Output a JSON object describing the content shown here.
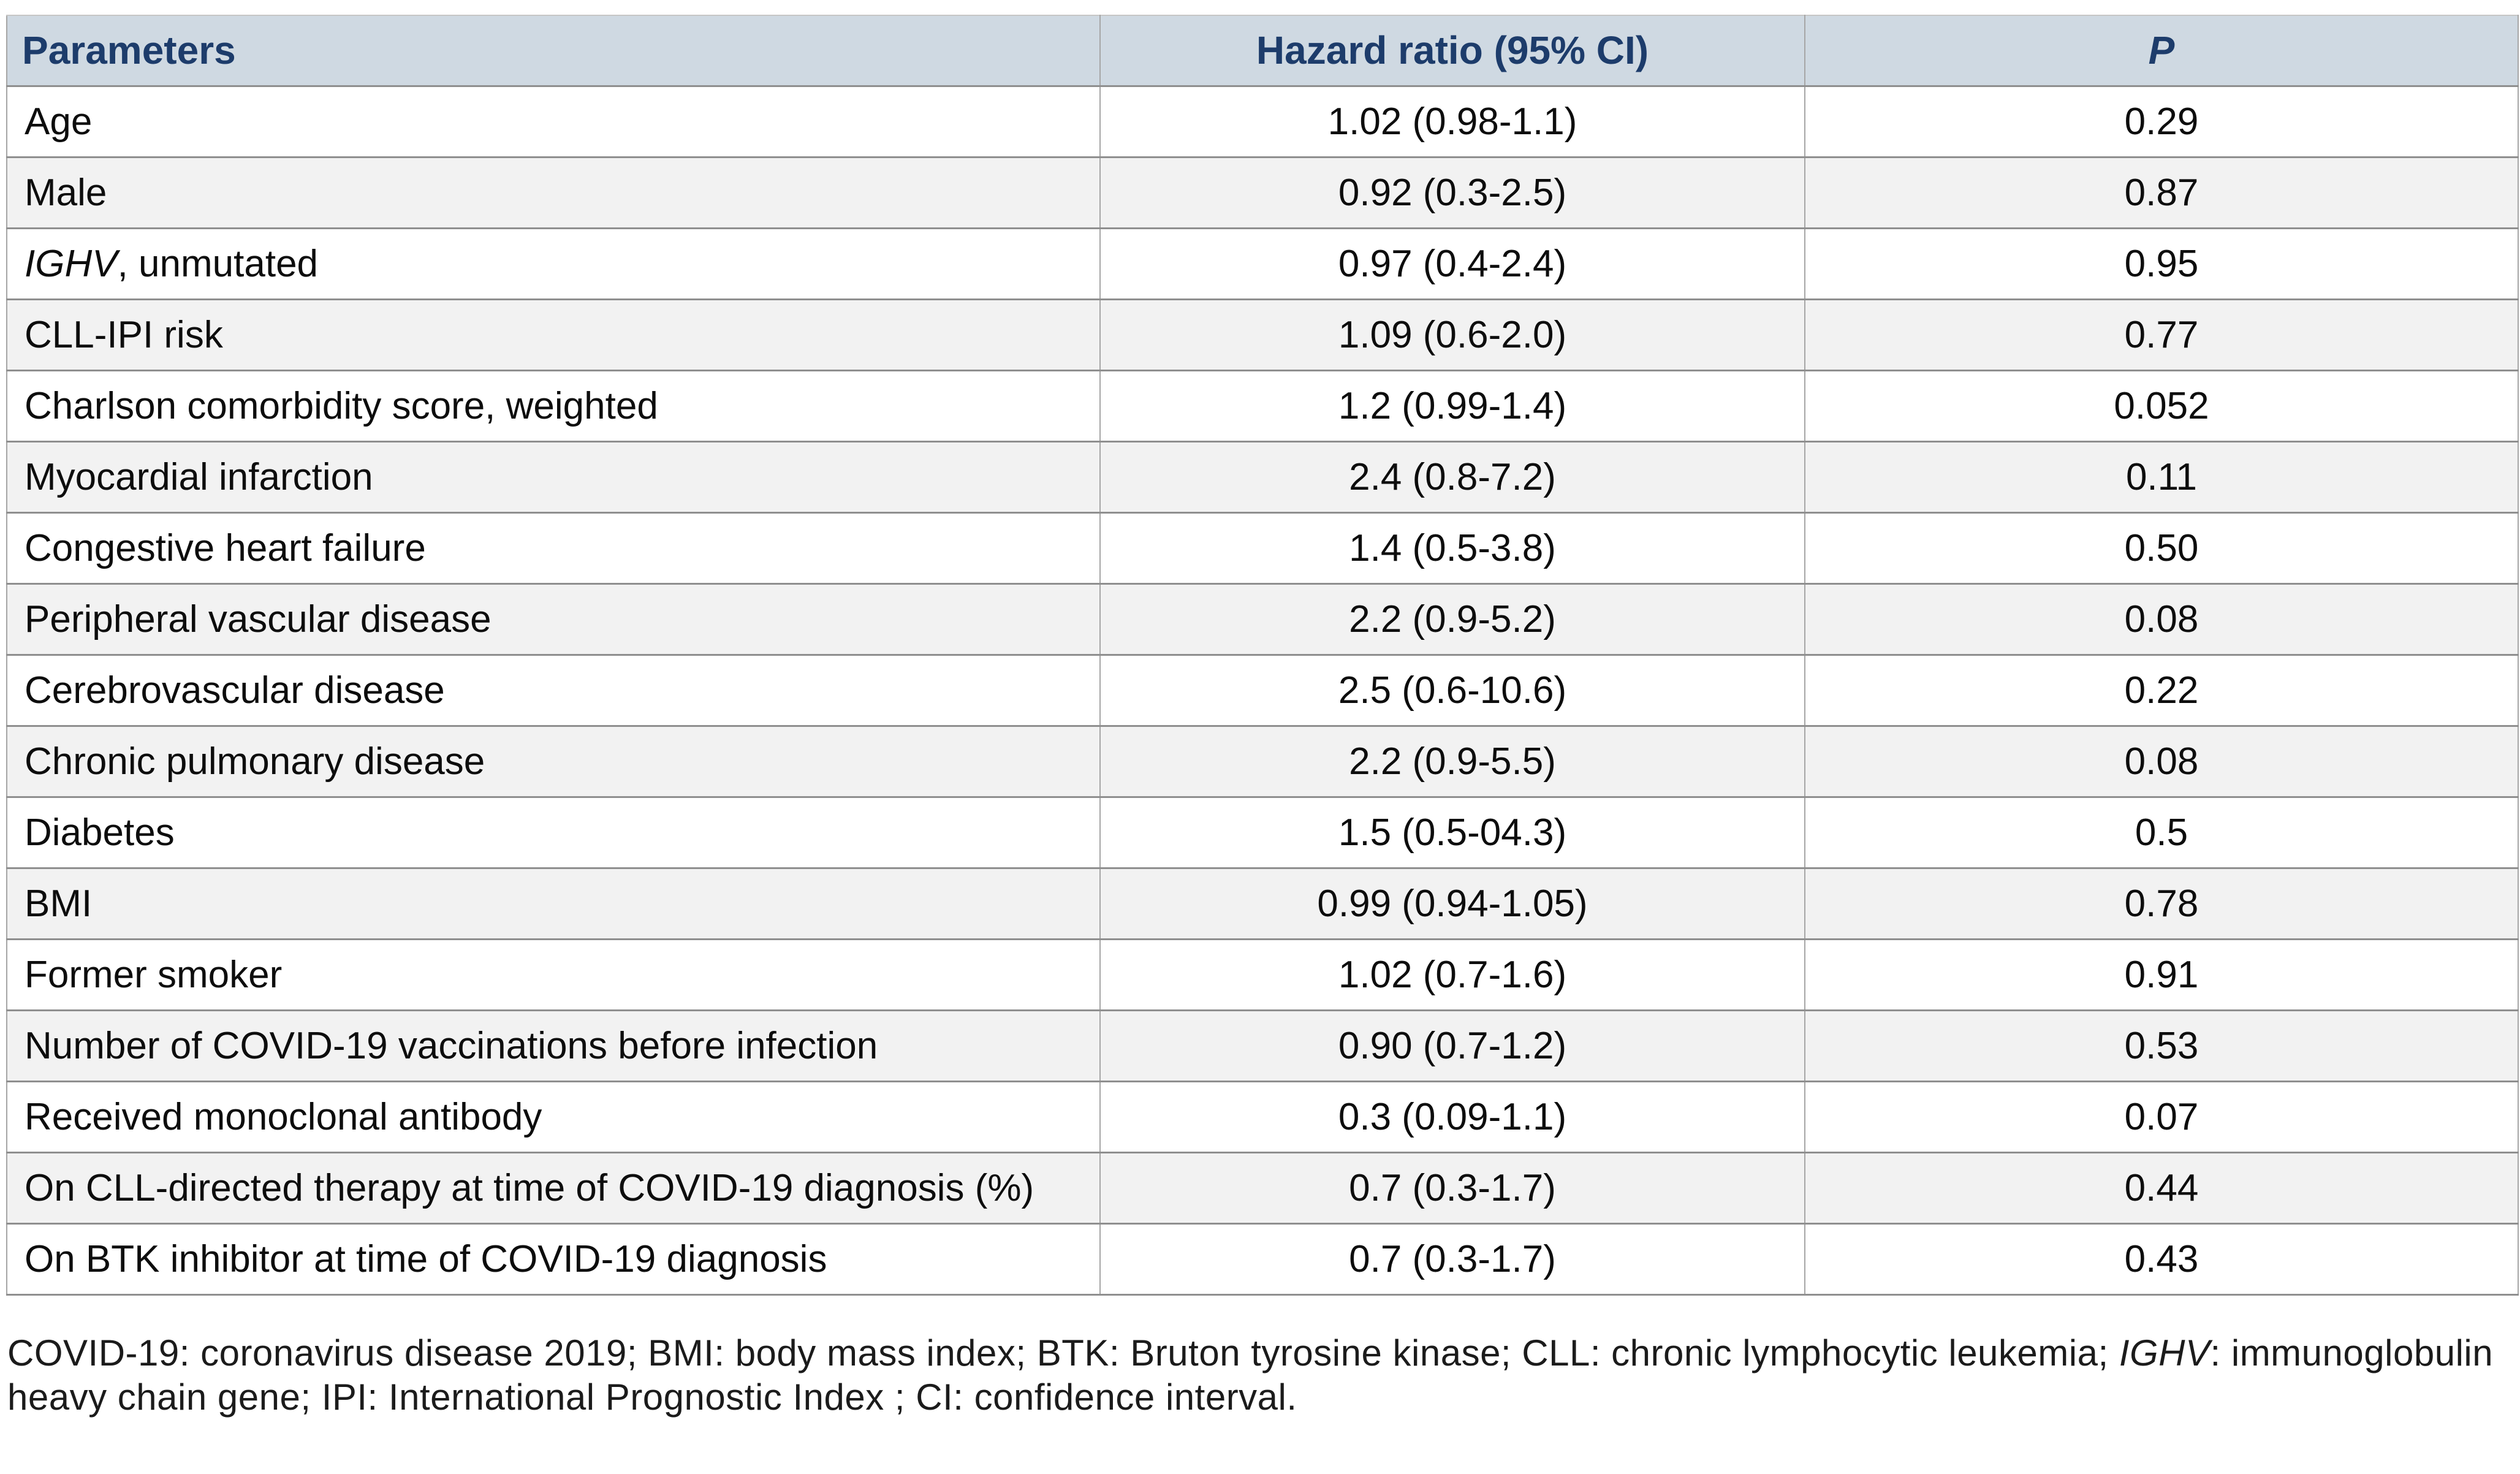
{
  "table": {
    "headers": [
      "Parameters",
      "Hazard ratio (95% CI)",
      "P"
    ],
    "rows": [
      {
        "param_italic": "",
        "param_text": "Age",
        "hazard_ratio": "1.02 (0.98-1.1)",
        "p_value": "0.29"
      },
      {
        "param_italic": "",
        "param_text": "Male",
        "hazard_ratio": "0.92 (0.3-2.5)",
        "p_value": "0.87"
      },
      {
        "param_italic": "IGHV",
        "param_text": ", unmutated",
        "hazard_ratio": "0.97 (0.4-2.4)",
        "p_value": "0.95"
      },
      {
        "param_italic": "",
        "param_text": "CLL-IPI risk",
        "hazard_ratio": "1.09 (0.6-2.0)",
        "p_value": "0.77"
      },
      {
        "param_italic": "",
        "param_text": "Charlson comorbidity score, weighted",
        "hazard_ratio": "1.2 (0.99-1.4)",
        "p_value": "0.052"
      },
      {
        "param_italic": "",
        "param_text": "Myocardial infarction",
        "hazard_ratio": "2.4 (0.8-7.2)",
        "p_value": "0.11"
      },
      {
        "param_italic": "",
        "param_text": "Congestive heart failure",
        "hazard_ratio": "1.4 (0.5-3.8)",
        "p_value": "0.50"
      },
      {
        "param_italic": "",
        "param_text": "Peripheral vascular disease",
        "hazard_ratio": "2.2 (0.9-5.2)",
        "p_value": "0.08"
      },
      {
        "param_italic": "",
        "param_text": "Cerebrovascular disease",
        "hazard_ratio": "2.5 (0.6-10.6)",
        "p_value": "0.22"
      },
      {
        "param_italic": "",
        "param_text": "Chronic pulmonary disease",
        "hazard_ratio": "2.2 (0.9-5.5)",
        "p_value": "0.08"
      },
      {
        "param_italic": "",
        "param_text": "Diabetes",
        "hazard_ratio": "1.5 (0.5-04.3)",
        "p_value": "0.5"
      },
      {
        "param_italic": "",
        "param_text": "BMI",
        "hazard_ratio": "0.99 (0.94-1.05)",
        "p_value": "0.78"
      },
      {
        "param_italic": "",
        "param_text": "Former smoker",
        "hazard_ratio": "1.02 (0.7-1.6)",
        "p_value": "0.91"
      },
      {
        "param_italic": "",
        "param_text": "Number of COVID-19 vaccinations before infection",
        "hazard_ratio": "0.90 (0.7-1.2)",
        "p_value": "0.53"
      },
      {
        "param_italic": "",
        "param_text": "Received monoclonal antibody",
        "hazard_ratio": "0.3 (0.09-1.1)",
        "p_value": "0.07"
      },
      {
        "param_italic": "",
        "param_text": "On CLL-directed therapy at time of COVID-19 diagnosis (%)",
        "hazard_ratio": "0.7 (0.3-1.7)",
        "p_value": "0.44"
      },
      {
        "param_italic": "",
        "param_text": "On BTK inhibitor at time of COVID-19 diagnosis",
        "hazard_ratio": "0.7 (0.3-1.7)",
        "p_value": "0.43"
      }
    ]
  },
  "footnote": {
    "part1": "COVID-19: coronavirus disease 2019; BMI: body mass index; BTK: Bruton tyrosine kinase; CLL: chronic lymphocytic leukemia; ",
    "gene": "IGHV",
    "part2": ": immunoglobulin heavy chain gene; IPI: International Prognostic Index ; CI: confidence interval."
  },
  "colors": {
    "header_bg": "#cfd9e2",
    "header_text": "#1d3c6b",
    "row_bg": "#ffffff",
    "row_alt_bg": "#f2f2f2",
    "border_dark": "#8f8f8f",
    "border_light": "#a6a6a6",
    "text": "#0d0d0d",
    "footnote_text": "#1b1b1b"
  }
}
